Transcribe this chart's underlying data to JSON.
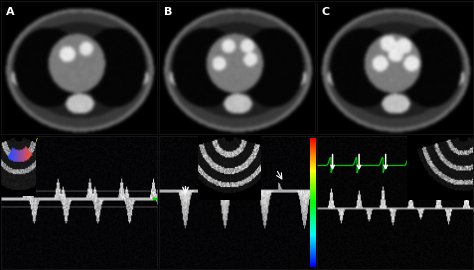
{
  "labels": [
    "A",
    "B",
    "C"
  ],
  "label_color": "#ffffff",
  "bg_color": "#000000",
  "panel_border_color": "#555555",
  "arrow_color": "#ffffff",
  "green_ecg_color": "#00dd00",
  "ncols": 3,
  "nrows": 2,
  "ct_seeds": [
    42,
    99,
    17
  ],
  "echo_seeds": [
    7,
    13,
    31
  ]
}
